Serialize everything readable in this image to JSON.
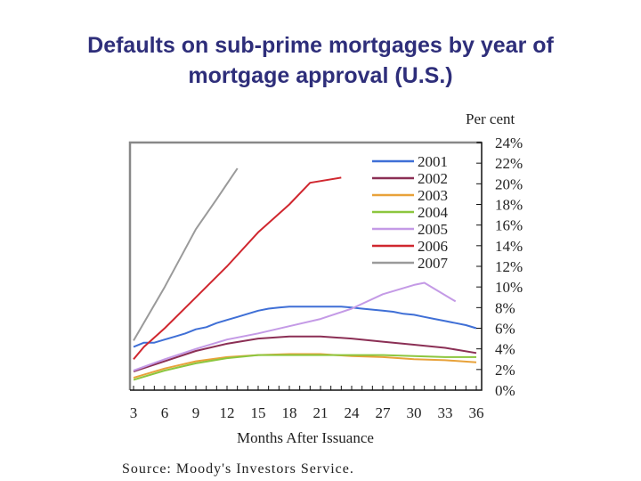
{
  "title_line1": "Defaults on sub-prime mortgages by year of",
  "title_line2": "mortgage approval (U.S.)",
  "source": "Source: Moody's Investors Service.",
  "chart_data": {
    "type": "line",
    "title": "Defaults on sub-prime mortgages by year of mortgage approval (U.S.)",
    "xlabel": "Months After Issuance",
    "ylabel": "Per cent",
    "x_ticks": [
      3,
      6,
      9,
      12,
      15,
      18,
      21,
      24,
      27,
      30,
      33,
      36
    ],
    "y_ticks": [
      "0%",
      "2%",
      "4%",
      "6%",
      "8%",
      "10%",
      "12%",
      "14%",
      "16%",
      "18%",
      "20%",
      "22%",
      "24%"
    ],
    "xlim": [
      3,
      36
    ],
    "ylim": [
      0,
      24
    ],
    "y_axis_position": "right",
    "legend_position": "upper right inside",
    "grid": false,
    "source": "Source: Moody's Investors Service.",
    "series": [
      {
        "name": "2001",
        "color": "#3f6fd6",
        "x": [
          3,
          4,
          5,
          6,
          7,
          8,
          9,
          10,
          11,
          12,
          13,
          14,
          15,
          16,
          17,
          18,
          19,
          20,
          21,
          22,
          23,
          24,
          25,
          26,
          27,
          28,
          29,
          30,
          31,
          32,
          33,
          34,
          35,
          36
        ],
        "values": [
          4.2,
          4.6,
          4.6,
          4.9,
          5.2,
          5.5,
          5.9,
          6.1,
          6.5,
          6.8,
          7.1,
          7.4,
          7.7,
          7.9,
          8.0,
          8.1,
          8.1,
          8.1,
          8.1,
          8.1,
          8.1,
          8.0,
          7.9,
          7.8,
          7.7,
          7.6,
          7.4,
          7.3,
          7.1,
          6.9,
          6.7,
          6.5,
          6.3,
          6.0
        ]
      },
      {
        "name": "2002",
        "color": "#8b2f55",
        "x": [
          3,
          6,
          9,
          12,
          15,
          18,
          21,
          24,
          27,
          30,
          33,
          36
        ],
        "values": [
          1.8,
          2.8,
          3.8,
          4.5,
          5.0,
          5.2,
          5.2,
          5.0,
          4.7,
          4.4,
          4.1,
          3.6
        ]
      },
      {
        "name": "2003",
        "color": "#e8a23a",
        "x": [
          3,
          6,
          9,
          12,
          15,
          18,
          21,
          24,
          27,
          30,
          33,
          36
        ],
        "values": [
          1.2,
          2.1,
          2.8,
          3.2,
          3.4,
          3.5,
          3.5,
          3.3,
          3.2,
          3.0,
          2.9,
          2.7
        ]
      },
      {
        "name": "2004",
        "color": "#8cc63e",
        "x": [
          3,
          6,
          9,
          12,
          15,
          18,
          21,
          24,
          27,
          30,
          33,
          36
        ],
        "values": [
          1.0,
          1.9,
          2.6,
          3.1,
          3.4,
          3.4,
          3.4,
          3.4,
          3.4,
          3.3,
          3.2,
          3.2
        ]
      },
      {
        "name": "2005",
        "color": "#c49ae6",
        "x": [
          3,
          6,
          9,
          12,
          15,
          18,
          21,
          24,
          27,
          30,
          31,
          34
        ],
        "values": [
          1.9,
          3.0,
          4.0,
          4.9,
          5.5,
          6.2,
          6.9,
          7.9,
          9.3,
          10.2,
          10.4,
          8.6
        ]
      },
      {
        "name": "2006",
        "color": "#d0272f",
        "x": [
          3,
          4,
          6,
          9,
          12,
          15,
          18,
          20,
          23
        ],
        "values": [
          3.0,
          4.2,
          6.0,
          9.0,
          12.0,
          15.3,
          18.0,
          20.1,
          20.6
        ]
      },
      {
        "name": "2007",
        "color": "#9a9a9a",
        "x": [
          3,
          6,
          9,
          11,
          13
        ],
        "values": [
          4.8,
          10.0,
          15.6,
          18.5,
          21.5
        ]
      }
    ]
  }
}
